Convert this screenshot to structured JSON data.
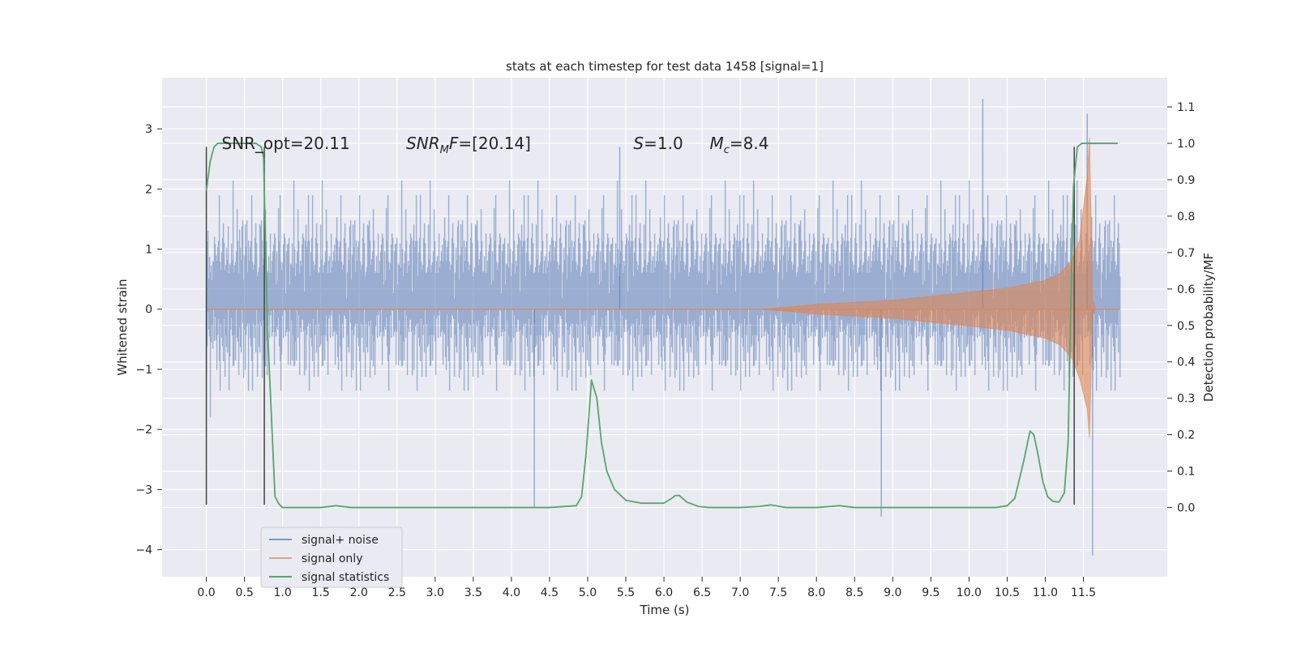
{
  "chart_data": {
    "type": "line",
    "title": "stats at each timestep for test data 1458 [signal=1]",
    "xlabel": "Time (s)",
    "ylabel_left": "Whitened strain",
    "ylabel_right": "Detection probability/MF",
    "xlim": [
      -0.58,
      12.6
    ],
    "ylim_left": [
      -4.45,
      3.85
    ],
    "ylim_right": [
      -0.19,
      1.18
    ],
    "x_ticks": [
      "0.0",
      "0.5",
      "1.0",
      "1.5",
      "2.0",
      "2.5",
      "3.0",
      "3.5",
      "4.0",
      "4.5",
      "5.0",
      "5.5",
      "6.0",
      "6.5",
      "7.0",
      "7.5",
      "8.0",
      "8.5",
      "9.0",
      "9.5",
      "10.0",
      "10.5",
      "11.0",
      "11.5"
    ],
    "y_ticks_left": [
      "−4",
      "−3",
      "−2",
      "−1",
      "0",
      "1",
      "2",
      "3"
    ],
    "y_ticks_right": [
      "0.0",
      "0.1",
      "0.2",
      "0.3",
      "0.4",
      "0.5",
      "0.6",
      "0.7",
      "0.8",
      "0.9",
      "1.0",
      "1.1"
    ],
    "grid": true,
    "legend_position": "lower-left",
    "series": [
      {
        "name": "signal+ noise",
        "color": "#4c72b0",
        "alpha": 0.5,
        "description": "noisy whitened strain, roughly ±1.6 envelope with spikes to ±3.5"
      },
      {
        "name": "signal only",
        "color": "#dd8452",
        "alpha": 0.5,
        "envelope": {
          "t": [
            7.3,
            8.0,
            9.0,
            10.0,
            10.5,
            11.0,
            11.2,
            11.35,
            11.45,
            11.55,
            11.58,
            11.62,
            11.65
          ],
          "amp": [
            0.0,
            0.08,
            0.15,
            0.28,
            0.35,
            0.48,
            0.6,
            0.82,
            1.15,
            2.2,
            2.85,
            0.15,
            0.05
          ]
        }
      },
      {
        "name": "signal statistics",
        "color": "#55a868",
        "x": [
          0.0,
          0.05,
          0.1,
          0.15,
          0.2,
          0.4,
          0.6,
          0.65,
          0.72,
          0.75,
          0.8,
          0.9,
          0.95,
          1.0,
          1.2,
          1.5,
          1.7,
          1.9,
          2.5,
          3.0,
          4.0,
          4.5,
          4.85,
          4.92,
          4.98,
          5.05,
          5.12,
          5.18,
          5.25,
          5.35,
          5.5,
          5.7,
          6.0,
          6.1,
          6.15,
          6.2,
          6.3,
          6.45,
          6.6,
          7.0,
          7.25,
          7.4,
          7.6,
          8.0,
          8.3,
          8.5,
          9.0,
          9.5,
          10.0,
          10.35,
          10.5,
          10.6,
          10.72,
          10.8,
          10.85,
          10.9,
          10.97,
          11.03,
          11.1,
          11.18,
          11.25,
          11.3,
          11.33,
          11.37,
          11.42,
          11.48,
          11.55,
          11.7,
          11.8,
          11.95
        ],
        "y": [
          0.87,
          0.95,
          0.99,
          1.0,
          1.0,
          1.0,
          1.0,
          1.0,
          0.99,
          0.96,
          0.5,
          0.03,
          0.01,
          0.0,
          0.0,
          0.0,
          0.005,
          0.0,
          0.0,
          0.0,
          0.0,
          0.0,
          0.005,
          0.03,
          0.15,
          0.35,
          0.3,
          0.18,
          0.1,
          0.05,
          0.02,
          0.012,
          0.012,
          0.025,
          0.033,
          0.033,
          0.015,
          0.003,
          0.0,
          0.0,
          0.003,
          0.007,
          0.0,
          0.0,
          0.005,
          0.0,
          0.0,
          0.0,
          0.0,
          0.0,
          0.005,
          0.025,
          0.13,
          0.21,
          0.2,
          0.15,
          0.07,
          0.03,
          0.017,
          0.015,
          0.04,
          0.18,
          0.5,
          0.88,
          0.99,
          1.0,
          1.0,
          1.0,
          1.0,
          1.0
        ]
      }
    ],
    "vertical_markers": [
      0.0,
      0.76,
      11.38
    ],
    "annotations": [
      {
        "text": "SNR_opt=20.11",
        "x": 0.2,
        "y_right": 1.0
      },
      {
        "text": "SNR_MF=[20.14]",
        "x": 2.62,
        "y_right": 1.0,
        "math": "SNR",
        "sub": "M",
        "tail": "F=[20.14]"
      },
      {
        "text": "S=1.0",
        "x": 5.6,
        "y_right": 1.0,
        "math": "S",
        "tail": "=1.0"
      },
      {
        "text": "M_c=8.4",
        "x": 6.6,
        "y_right": 1.0,
        "math": "M",
        "sub": "c",
        "tail": "=8.4"
      }
    ]
  }
}
